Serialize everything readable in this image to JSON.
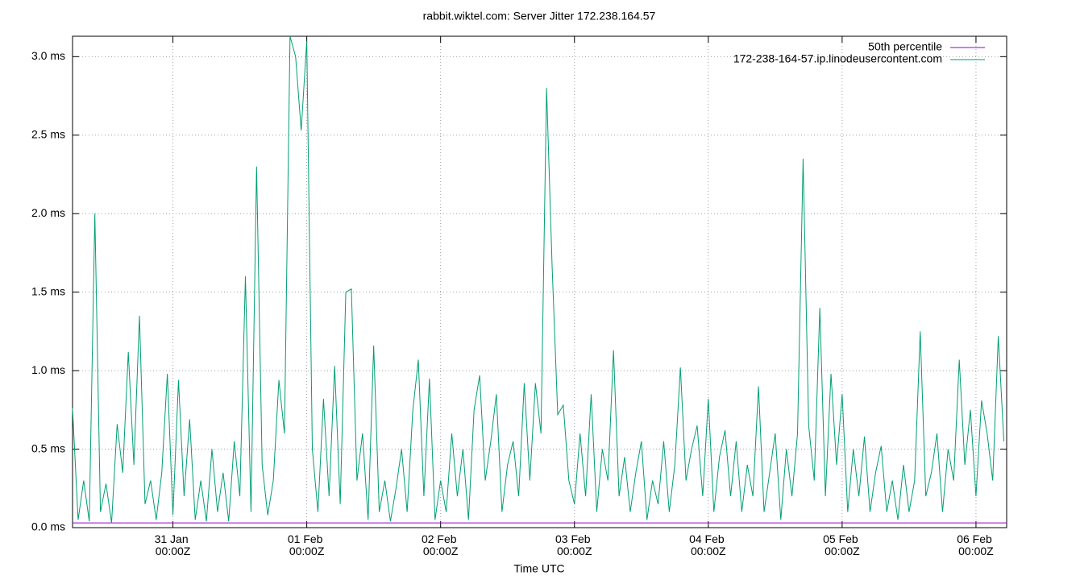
{
  "chart_data": {
    "type": "line",
    "title": "rabbit.wiktel.com: Server Jitter 172.238.164.57",
    "xlabel": "Time UTC",
    "legend": "top-right",
    "grid": true,
    "xlim": [
      "30 Jan 06:00Z",
      "06 Feb 05:30Z"
    ],
    "xticks": [
      "31 Jan 00:00Z",
      "01 Feb 00:00Z",
      "02 Feb 00:00Z",
      "03 Feb 00:00Z",
      "04 Feb 00:00Z",
      "05 Feb 00:00Z",
      "06 Feb 00:00Z"
    ],
    "ylim": [
      0,
      3.13
    ],
    "yticks": [
      {
        "value": 0,
        "label": "0.0 ms"
      },
      {
        "value": 0.5,
        "label": "0.5 ms"
      },
      {
        "value": 1.0,
        "label": "1.0 ms"
      },
      {
        "value": 1.5,
        "label": "1.5 ms"
      },
      {
        "value": 2.0,
        "label": "2.0 ms"
      },
      {
        "value": 2.5,
        "label": "2.5 ms"
      },
      {
        "value": 3.0,
        "label": "3.0 ms"
      }
    ],
    "series": [
      {
        "name": "50th percentile",
        "color": "#9400d3",
        "x": [
          "30 Jan 06:00Z",
          "06 Feb 05:30Z"
        ],
        "values": [
          0.03,
          0.03
        ]
      },
      {
        "name": "172-238-164-57.ip.linodeusercontent.com",
        "color": "#009e73",
        "x": [
          "30 Jan 06:00Z",
          "30 Jan 07:00Z",
          "30 Jan 08:00Z",
          "30 Jan 09:00Z",
          "30 Jan 10:00Z",
          "30 Jan 11:00Z",
          "30 Jan 12:00Z",
          "30 Jan 13:00Z",
          "30 Jan 14:00Z",
          "30 Jan 15:00Z",
          "30 Jan 16:00Z",
          "30 Jan 17:00Z",
          "30 Jan 18:00Z",
          "30 Jan 19:00Z",
          "30 Jan 20:00Z",
          "30 Jan 21:00Z",
          "30 Jan 22:00Z",
          "30 Jan 23:00Z",
          "31 Jan 00:00Z",
          "31 Jan 01:00Z",
          "31 Jan 02:00Z",
          "31 Jan 03:00Z",
          "31 Jan 04:00Z",
          "31 Jan 05:00Z",
          "31 Jan 06:00Z",
          "31 Jan 07:00Z",
          "31 Jan 08:00Z",
          "31 Jan 09:00Z",
          "31 Jan 10:00Z",
          "31 Jan 11:00Z",
          "31 Jan 12:00Z",
          "31 Jan 13:00Z",
          "31 Jan 14:00Z",
          "31 Jan 15:00Z",
          "31 Jan 16:00Z",
          "31 Jan 17:00Z",
          "31 Jan 18:00Z",
          "31 Jan 19:00Z",
          "31 Jan 20:00Z",
          "31 Jan 21:00Z",
          "31 Jan 22:00Z",
          "31 Jan 23:00Z",
          "01 Feb 00:00Z",
          "01 Feb 01:00Z",
          "01 Feb 02:00Z",
          "01 Feb 03:00Z",
          "01 Feb 04:00Z",
          "01 Feb 05:00Z",
          "01 Feb 06:00Z",
          "01 Feb 07:00Z",
          "01 Feb 08:00Z",
          "01 Feb 09:00Z",
          "01 Feb 10:00Z",
          "01 Feb 11:00Z",
          "01 Feb 12:00Z",
          "01 Feb 13:00Z",
          "01 Feb 14:00Z",
          "01 Feb 15:00Z",
          "01 Feb 16:00Z",
          "01 Feb 17:00Z",
          "01 Feb 18:00Z",
          "01 Feb 19:00Z",
          "01 Feb 20:00Z",
          "01 Feb 21:00Z",
          "01 Feb 22:00Z",
          "01 Feb 23:00Z",
          "02 Feb 00:00Z",
          "02 Feb 01:00Z",
          "02 Feb 02:00Z",
          "02 Feb 03:00Z",
          "02 Feb 04:00Z",
          "02 Feb 05:00Z",
          "02 Feb 06:00Z",
          "02 Feb 07:00Z",
          "02 Feb 08:00Z",
          "02 Feb 09:00Z",
          "02 Feb 10:00Z",
          "02 Feb 11:00Z",
          "02 Feb 12:00Z",
          "02 Feb 13:00Z",
          "02 Feb 14:00Z",
          "02 Feb 15:00Z",
          "02 Feb 16:00Z",
          "02 Feb 17:00Z",
          "02 Feb 18:00Z",
          "02 Feb 19:00Z",
          "02 Feb 20:00Z",
          "02 Feb 21:00Z",
          "02 Feb 22:00Z",
          "02 Feb 23:00Z",
          "03 Feb 00:00Z",
          "03 Feb 01:00Z",
          "03 Feb 02:00Z",
          "03 Feb 03:00Z",
          "03 Feb 04:00Z",
          "03 Feb 05:00Z",
          "03 Feb 06:00Z",
          "03 Feb 07:00Z",
          "03 Feb 08:00Z",
          "03 Feb 09:00Z",
          "03 Feb 10:00Z",
          "03 Feb 11:00Z",
          "03 Feb 12:00Z",
          "03 Feb 13:00Z",
          "03 Feb 14:00Z",
          "03 Feb 15:00Z",
          "03 Feb 16:00Z",
          "03 Feb 17:00Z",
          "03 Feb 18:00Z",
          "03 Feb 19:00Z",
          "03 Feb 20:00Z",
          "03 Feb 21:00Z",
          "03 Feb 22:00Z",
          "03 Feb 23:00Z",
          "04 Feb 00:00Z",
          "04 Feb 01:00Z",
          "04 Feb 02:00Z",
          "04 Feb 03:00Z",
          "04 Feb 04:00Z",
          "04 Feb 05:00Z",
          "04 Feb 06:00Z",
          "04 Feb 07:00Z",
          "04 Feb 08:00Z",
          "04 Feb 09:00Z",
          "04 Feb 10:00Z",
          "04 Feb 11:00Z",
          "04 Feb 12:00Z",
          "04 Feb 13:00Z",
          "04 Feb 14:00Z",
          "04 Feb 15:00Z",
          "04 Feb 16:00Z",
          "04 Feb 17:00Z",
          "04 Feb 18:00Z",
          "04 Feb 19:00Z",
          "04 Feb 20:00Z",
          "04 Feb 21:00Z",
          "04 Feb 22:00Z",
          "04 Feb 23:00Z",
          "05 Feb 00:00Z",
          "05 Feb 01:00Z",
          "05 Feb 02:00Z",
          "05 Feb 03:00Z",
          "05 Feb 04:00Z",
          "05 Feb 05:00Z",
          "05 Feb 06:00Z",
          "05 Feb 07:00Z",
          "05 Feb 08:00Z",
          "05 Feb 09:00Z",
          "05 Feb 10:00Z",
          "05 Feb 11:00Z",
          "05 Feb 12:00Z",
          "05 Feb 13:00Z",
          "05 Feb 14:00Z",
          "05 Feb 15:00Z",
          "05 Feb 16:00Z",
          "05 Feb 17:00Z",
          "05 Feb 18:00Z",
          "05 Feb 19:00Z",
          "05 Feb 20:00Z",
          "05 Feb 21:00Z",
          "05 Feb 22:00Z",
          "05 Feb 23:00Z",
          "06 Feb 00:00Z",
          "06 Feb 01:00Z",
          "06 Feb 02:00Z",
          "06 Feb 03:00Z",
          "06 Feb 04:00Z",
          "06 Feb 05:00Z"
        ],
        "values": [
          0.76,
          0.05,
          0.3,
          0.04,
          2.0,
          0.1,
          0.28,
          0.03,
          0.66,
          0.35,
          1.12,
          0.4,
          1.35,
          0.15,
          0.3,
          0.05,
          0.35,
          0.98,
          0.08,
          0.94,
          0.2,
          0.69,
          0.05,
          0.3,
          0.04,
          0.5,
          0.1,
          0.35,
          0.04,
          0.55,
          0.2,
          1.6,
          0.1,
          2.3,
          0.4,
          0.08,
          0.3,
          0.94,
          0.6,
          3.13,
          3.0,
          2.53,
          3.1,
          0.5,
          0.1,
          0.82,
          0.2,
          1.03,
          0.15,
          1.5,
          1.52,
          0.3,
          0.6,
          0.05,
          1.16,
          0.1,
          0.3,
          0.04,
          0.25,
          0.5,
          0.1,
          0.74,
          1.07,
          0.2,
          0.95,
          0.05,
          0.3,
          0.1,
          0.6,
          0.2,
          0.5,
          0.05,
          0.75,
          0.97,
          0.3,
          0.55,
          0.85,
          0.1,
          0.4,
          0.55,
          0.2,
          0.92,
          0.3,
          0.92,
          0.6,
          2.8,
          1.66,
          0.72,
          0.78,
          0.3,
          0.15,
          0.6,
          0.2,
          0.85,
          0.1,
          0.5,
          0.3,
          1.13,
          0.2,
          0.45,
          0.1,
          0.35,
          0.55,
          0.05,
          0.3,
          0.15,
          0.55,
          0.1,
          0.4,
          1.02,
          0.3,
          0.5,
          0.65,
          0.2,
          0.82,
          0.1,
          0.45,
          0.62,
          0.2,
          0.55,
          0.1,
          0.4,
          0.2,
          0.9,
          0.1,
          0.35,
          0.6,
          0.05,
          0.5,
          0.2,
          0.6,
          2.35,
          0.65,
          0.3,
          1.4,
          0.2,
          0.98,
          0.4,
          0.85,
          0.1,
          0.5,
          0.2,
          0.58,
          0.1,
          0.35,
          0.52,
          0.1,
          0.3,
          0.05,
          0.4,
          0.1,
          0.3,
          1.25,
          0.2,
          0.35,
          0.6,
          0.1,
          0.5,
          0.3,
          1.07,
          0.4,
          0.75,
          0.2,
          0.81,
          0.6,
          0.3,
          1.22,
          0.55
        ]
      }
    ]
  }
}
